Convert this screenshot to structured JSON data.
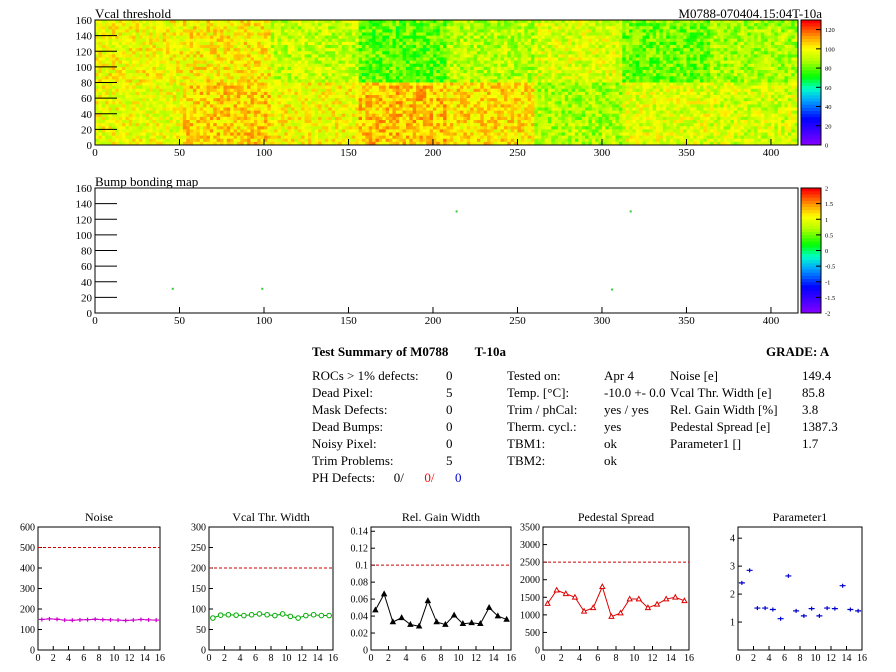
{
  "header": {
    "map1_title": "Vcal threshold",
    "module_label": "M0788-070404.15:04T-10a",
    "map2_title": "Bump bonding map"
  },
  "chart_data": [
    {
      "type": "heatmap",
      "title": "Vcal threshold",
      "x_ticks": [
        0,
        50,
        100,
        150,
        200,
        250,
        300,
        350,
        400
      ],
      "y_ticks": [
        0,
        20,
        40,
        60,
        80,
        100,
        120,
        140,
        160
      ],
      "xlim": [
        0,
        416
      ],
      "ylim": [
        0,
        160
      ],
      "colorbar_ticks": [
        0,
        20,
        40,
        60,
        80,
        100,
        120
      ],
      "colorbar_range": [
        0,
        130
      ],
      "roc_rows": 2,
      "roc_cols": 8,
      "roc_mean_values": {
        "top": [
          100,
          102,
          92,
          80,
          90,
          95,
          82,
          88
        ],
        "bottom": [
          98,
          106,
          100,
          108,
          104,
          88,
          96,
          94
        ]
      },
      "colors": {
        "low": "#7f00ff",
        "mid": "#00ff00",
        "high": "#ff0000"
      }
    },
    {
      "type": "heatmap",
      "title": "Bump bonding map",
      "x_ticks": [
        0,
        50,
        100,
        150,
        200,
        250,
        300,
        350,
        400
      ],
      "y_ticks": [
        0,
        20,
        40,
        60,
        80,
        100,
        120,
        140,
        160
      ],
      "xlim": [
        0,
        416
      ],
      "ylim": [
        0,
        160
      ],
      "colorbar_ticks": [
        -2,
        -1.5,
        -1,
        -0.5,
        0,
        0.5,
        1,
        1.5,
        2
      ],
      "colorbar_range": [
        -2,
        2
      ],
      "points": [
        [
          46,
          31
        ],
        [
          99,
          31
        ],
        [
          214,
          130
        ],
        [
          306,
          30
        ],
        [
          317,
          130
        ]
      ]
    },
    {
      "type": "line",
      "title": "Noise",
      "x": [
        0,
        1,
        2,
        3,
        4,
        5,
        6,
        7,
        8,
        9,
        10,
        11,
        12,
        13,
        14,
        15
      ],
      "values": [
        149,
        152,
        150,
        146,
        145,
        147,
        148,
        150,
        148,
        147,
        146,
        144,
        146,
        149,
        147,
        146
      ],
      "ylim": [
        0,
        600
      ],
      "y_ticks": [
        0,
        100,
        200,
        300,
        400,
        500,
        600
      ],
      "x_ticks": [
        0,
        2,
        4,
        6,
        8,
        10,
        12,
        14,
        16
      ],
      "reference": 500,
      "color": "#cc00cc",
      "marker": "plus"
    },
    {
      "type": "line",
      "title": "Vcal Thr. Width",
      "x": [
        0,
        1,
        2,
        3,
        4,
        5,
        6,
        7,
        8,
        9,
        10,
        11,
        12,
        13,
        14,
        15
      ],
      "values": [
        78,
        85,
        86,
        85,
        84,
        86,
        88,
        86,
        84,
        88,
        82,
        78,
        84,
        86,
        84,
        84
      ],
      "ylim": [
        0,
        300
      ],
      "y_ticks": [
        0,
        50,
        100,
        150,
        200,
        250,
        300
      ],
      "x_ticks": [
        0,
        2,
        4,
        6,
        8,
        10,
        12,
        14,
        16
      ],
      "reference": 200,
      "color": "#00aa00",
      "marker": "circle"
    },
    {
      "type": "line",
      "title": "Rel. Gain Width",
      "x": [
        0,
        1,
        2,
        3,
        4,
        5,
        6,
        7,
        8,
        9,
        10,
        11,
        12,
        13,
        14,
        15
      ],
      "values": [
        0.047,
        0.066,
        0.033,
        0.038,
        0.03,
        0.028,
        0.058,
        0.033,
        0.03,
        0.041,
        0.031,
        0.032,
        0.031,
        0.05,
        0.04,
        0.036
      ],
      "ylim": [
        0,
        0.145
      ],
      "y_ticks": [
        0,
        0.02,
        0.04,
        0.06,
        0.08,
        0.1,
        0.12,
        0.14
      ],
      "x_ticks": [
        0,
        2,
        4,
        6,
        8,
        10,
        12,
        14,
        16
      ],
      "reference": 0.1,
      "color": "#000000",
      "marker": "triangle"
    },
    {
      "type": "line",
      "title": "Pedestal Spread",
      "x": [
        0,
        1,
        2,
        3,
        4,
        5,
        6,
        7,
        8,
        9,
        10,
        11,
        12,
        13,
        14,
        15
      ],
      "values": [
        1320,
        1700,
        1600,
        1500,
        1100,
        1200,
        1800,
        950,
        1050,
        1450,
        1450,
        1200,
        1300,
        1450,
        1500,
        1400
      ],
      "ylim": [
        0,
        3500
      ],
      "y_ticks": [
        0,
        500,
        1000,
        1500,
        2000,
        2500,
        3000,
        3500
      ],
      "x_ticks": [
        0,
        2,
        4,
        6,
        8,
        10,
        12,
        14,
        16
      ],
      "reference": 2500,
      "color": "#dd0000",
      "marker": "triangle"
    },
    {
      "type": "scatter",
      "title": "Parameter1",
      "x": [
        0,
        1,
        2,
        3,
        4,
        5,
        6,
        7,
        8,
        9,
        10,
        11,
        12,
        13,
        14,
        15
      ],
      "values": [
        2.4,
        2.85,
        1.5,
        1.5,
        1.45,
        1.12,
        2.65,
        1.4,
        1.22,
        1.48,
        1.22,
        1.5,
        1.48,
        2.3,
        1.45,
        1.4
      ],
      "ylim": [
        0,
        4.4
      ],
      "y_ticks": [
        1,
        2,
        3,
        4
      ],
      "x_ticks": [
        0,
        2,
        4,
        6,
        8,
        10,
        12,
        14,
        16
      ],
      "color": "#0000cc",
      "marker": "plus"
    }
  ],
  "summary": {
    "title": "Test Summary of M0788",
    "tag": "T-10a",
    "grade_label": "GRADE:",
    "grade": "A",
    "left": [
      {
        "label": "ROCs > 1% defects:",
        "value": "0"
      },
      {
        "label": "Dead Pixel:",
        "value": "5"
      },
      {
        "label": "Mask Defects:",
        "value": "0"
      },
      {
        "label": "Dead Bumps:",
        "value": "0"
      },
      {
        "label": "Noisy Pixel:",
        "value": "0"
      },
      {
        "label": "Trim Problems:",
        "value": "5"
      }
    ],
    "ph_defects": {
      "label": "PH Defects:",
      "v1": "0/",
      "v2": "0/",
      "v3": "0",
      "c2": "#ff0000",
      "c3": "#0000cc"
    },
    "middle": [
      {
        "label": "Tested on:",
        "value": "Apr 4"
      },
      {
        "label": "Temp. [°C]:",
        "value": "-10.0 +- 0.0"
      },
      {
        "label": "Trim / phCal:",
        "value": "yes / yes"
      },
      {
        "label": "Therm. cycl.:",
        "value": "yes"
      },
      {
        "label": "TBM1:",
        "value": "ok"
      },
      {
        "label": "TBM2:",
        "value": "ok"
      }
    ],
    "right": [
      {
        "label": "Noise [e]",
        "value": "149.4"
      },
      {
        "label": "Vcal Thr. Width [e]",
        "value": "85.8"
      },
      {
        "label": "Rel. Gain Width [%]",
        "value": "3.8"
      },
      {
        "label": "Pedestal Spread [e]",
        "value": "1387.3"
      },
      {
        "label": "Parameter1 []",
        "value": "1.7"
      }
    ]
  }
}
